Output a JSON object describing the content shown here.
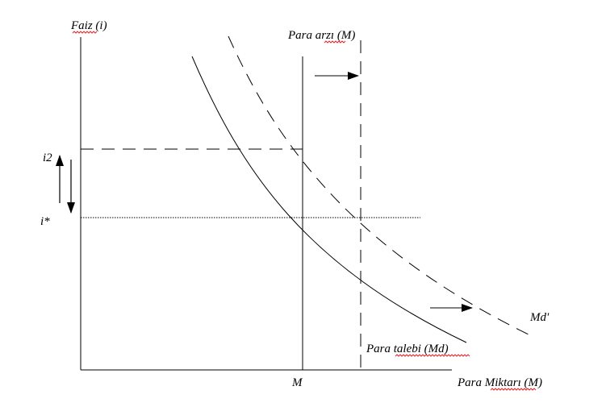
{
  "labels": {
    "y_axis": "Faiz (i)",
    "x_axis": "Para Miktarı (M)",
    "money_supply": "Para arzı (M)",
    "money_demand": "Para talebi (Md)",
    "new_demand": "Md'",
    "i_star": "i*",
    "i2": "i2",
    "m_tick": "M"
  },
  "colors": {
    "line": "#000000",
    "spellcheck_underline": "#e0262a"
  }
}
